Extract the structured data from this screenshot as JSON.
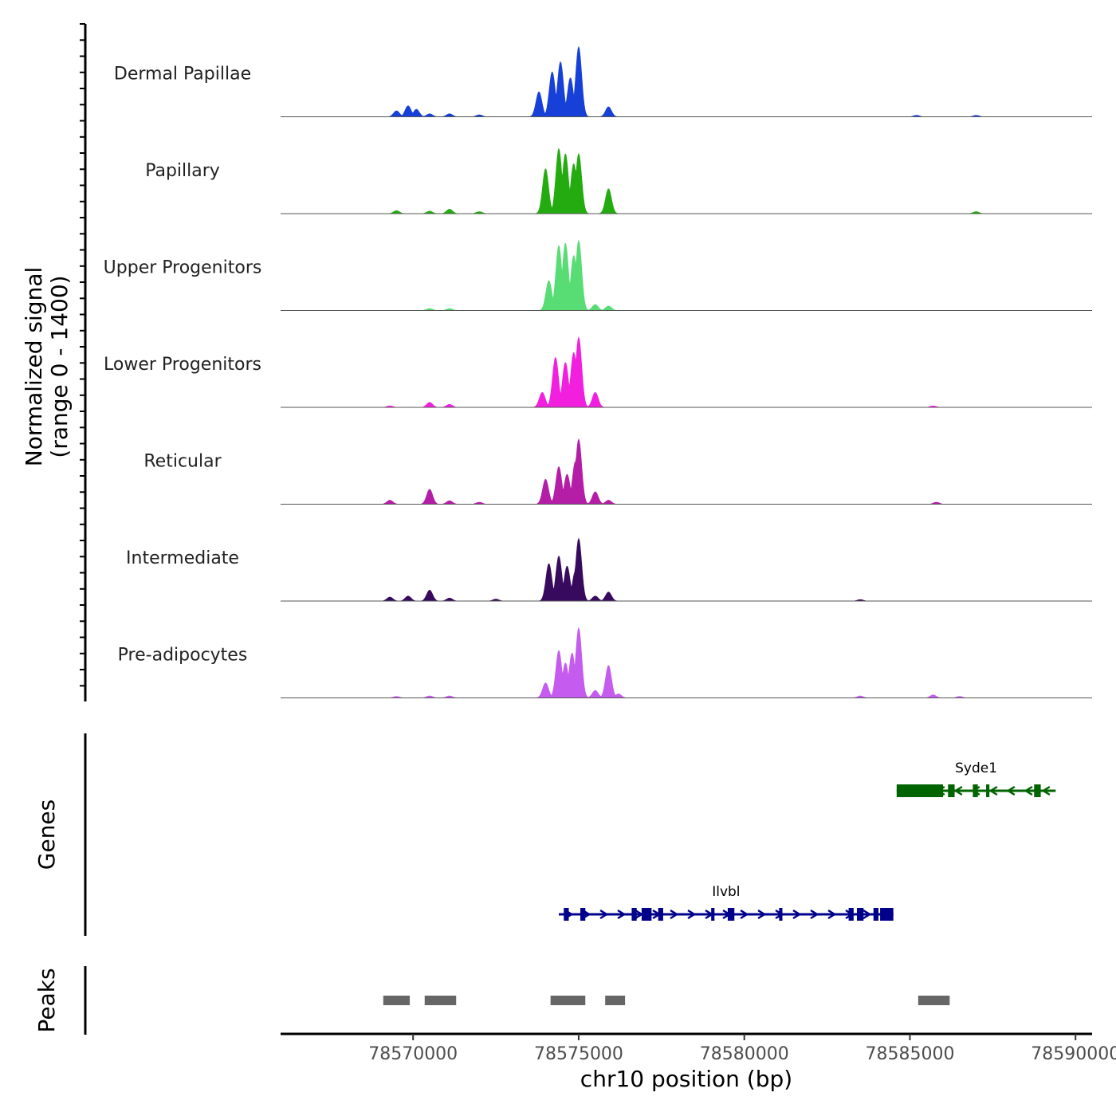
{
  "chart_data": {
    "type": "area",
    "title": "",
    "y_axis_label_line1": "Normalized signal",
    "y_axis_label_line2": "(range 0 - 1400)",
    "ylim": [
      0,
      1400
    ],
    "xlabel": "chr10 position (bp)",
    "xlim": [
      78566000,
      78590500
    ],
    "x_ticks": [
      {
        "value": 78570000,
        "label": "78570000"
      },
      {
        "value": 78575000,
        "label": "78575000"
      },
      {
        "value": 78580000,
        "label": "78580000"
      },
      {
        "value": 78585000,
        "label": "78585000"
      },
      {
        "value": 78590000,
        "label": "78590000"
      }
    ],
    "tracks": [
      {
        "name": "Dermal Papillae",
        "color": "#1740d8",
        "peaks": [
          [
            78569500,
            120
          ],
          [
            78569850,
            220
          ],
          [
            78570100,
            150
          ],
          [
            78570500,
            60
          ],
          [
            78571100,
            60
          ],
          [
            78572000,
            40
          ],
          [
            78573800,
            500
          ],
          [
            78574200,
            900
          ],
          [
            78574450,
            1100
          ],
          [
            78574750,
            780
          ],
          [
            78575000,
            1400
          ],
          [
            78575900,
            200
          ],
          [
            78585200,
            30
          ],
          [
            78587000,
            30
          ]
        ]
      },
      {
        "name": "Papillary",
        "color": "#23ab10",
        "peaks": [
          [
            78569500,
            60
          ],
          [
            78570500,
            50
          ],
          [
            78571100,
            90
          ],
          [
            78572000,
            40
          ],
          [
            78574000,
            900
          ],
          [
            78574400,
            1300
          ],
          [
            78574600,
            1200
          ],
          [
            78574850,
            1000
          ],
          [
            78575000,
            1200
          ],
          [
            78575900,
            500
          ],
          [
            78587000,
            40
          ]
        ]
      },
      {
        "name": "Upper Progenitors",
        "color": "#58dc74",
        "peaks": [
          [
            78570500,
            40
          ],
          [
            78571100,
            40
          ],
          [
            78574100,
            600
          ],
          [
            78574400,
            1300
          ],
          [
            78574600,
            1350
          ],
          [
            78574850,
            1100
          ],
          [
            78575000,
            1400
          ],
          [
            78575500,
            120
          ],
          [
            78575900,
            90
          ]
        ]
      },
      {
        "name": "Lower Progenitors",
        "color": "#f21fdf",
        "peaks": [
          [
            78569300,
            30
          ],
          [
            78570500,
            100
          ],
          [
            78571100,
            60
          ],
          [
            78573900,
            300
          ],
          [
            78574300,
            1000
          ],
          [
            78574600,
            900
          ],
          [
            78574850,
            1100
          ],
          [
            78575000,
            1400
          ],
          [
            78575500,
            300
          ],
          [
            78585700,
            30
          ]
        ]
      },
      {
        "name": "Reticular",
        "color": "#b41ea6",
        "peaks": [
          [
            78569300,
            80
          ],
          [
            78570500,
            300
          ],
          [
            78571100,
            70
          ],
          [
            78572000,
            40
          ],
          [
            78574000,
            500
          ],
          [
            78574400,
            750
          ],
          [
            78574650,
            600
          ],
          [
            78574900,
            850
          ],
          [
            78575000,
            1300
          ],
          [
            78575500,
            250
          ],
          [
            78575900,
            80
          ],
          [
            78585800,
            40
          ]
        ]
      },
      {
        "name": "Intermediate",
        "color": "#380a5e",
        "peaks": [
          [
            78569300,
            80
          ],
          [
            78569850,
            100
          ],
          [
            78570500,
            220
          ],
          [
            78571100,
            60
          ],
          [
            78572500,
            40
          ],
          [
            78574100,
            750
          ],
          [
            78574400,
            900
          ],
          [
            78574650,
            700
          ],
          [
            78574900,
            600
          ],
          [
            78575000,
            1250
          ],
          [
            78575500,
            100
          ],
          [
            78575900,
            180
          ],
          [
            78583500,
            30
          ]
        ]
      },
      {
        "name": "Pre-adipocytes",
        "color": "#c55bef",
        "peaks": [
          [
            78569500,
            30
          ],
          [
            78570500,
            40
          ],
          [
            78571100,
            40
          ],
          [
            78574000,
            300
          ],
          [
            78574400,
            950
          ],
          [
            78574600,
            700
          ],
          [
            78574800,
            900
          ],
          [
            78575000,
            1400
          ],
          [
            78575500,
            150
          ],
          [
            78575900,
            650
          ],
          [
            78576200,
            80
          ],
          [
            78583500,
            40
          ],
          [
            78585700,
            60
          ],
          [
            78586500,
            30
          ]
        ]
      }
    ],
    "genes_track_label": "Genes",
    "genes": [
      {
        "name": "Syde1",
        "strand": "-",
        "color": "#006400",
        "start": 78584600,
        "end": 78589400,
        "exons": [
          [
            78584600,
            78586000
          ],
          [
            78586150,
            78586350
          ],
          [
            78586900,
            78587050
          ],
          [
            78587300,
            78587400
          ],
          [
            78588750,
            78588950
          ]
        ]
      },
      {
        "name": "Ilvbl",
        "strand": "+",
        "color": "#00008b",
        "start": 78574400,
        "end": 78584500,
        "exons": [
          [
            78574550,
            78574700
          ],
          [
            78575050,
            78575200
          ],
          [
            78576600,
            78576750
          ],
          [
            78576900,
            78577200
          ],
          [
            78577400,
            78577550
          ],
          [
            78579000,
            78579100
          ],
          [
            78579500,
            78579700
          ],
          [
            78581050,
            78581150
          ],
          [
            78583150,
            78583300
          ],
          [
            78583400,
            78583600
          ],
          [
            78583900,
            78584050
          ],
          [
            78584100,
            78584500
          ]
        ]
      }
    ],
    "peaks_track_label": "Peaks",
    "peak_regions": [
      [
        78569100,
        78569900
      ],
      [
        78570350,
        78571300
      ],
      [
        78574150,
        78575200
      ],
      [
        78575800,
        78576400
      ],
      [
        78585250,
        78586200
      ]
    ]
  }
}
